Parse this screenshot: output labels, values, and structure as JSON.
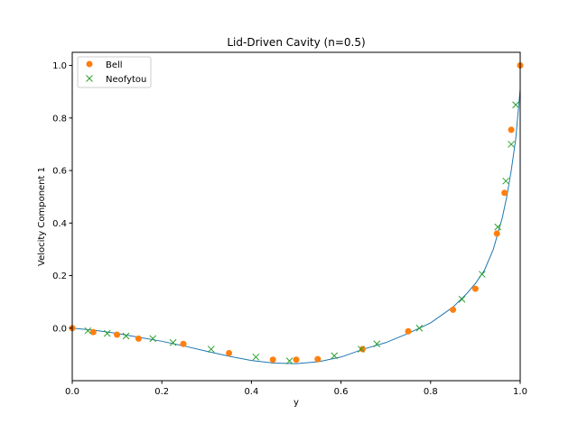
{
  "chart_data": {
    "type": "line",
    "title": "Lid-Driven Cavity (n=0.5)",
    "xlabel": "y",
    "ylabel": "Velocity Component 1",
    "xlim": [
      0,
      1
    ],
    "ylim": [
      -0.2,
      1.05
    ],
    "xticks": [
      "0.0",
      "0.2",
      "0.4",
      "0.6",
      "0.8",
      "1.0"
    ],
    "yticks": [
      "0.0",
      "0.2",
      "0.4",
      "0.6",
      "0.8",
      "1.0"
    ],
    "xtick_values": [
      0,
      0.2,
      0.4,
      0.6,
      0.8,
      1.0
    ],
    "ytick_values": [
      0,
      0.2,
      0.4,
      0.6,
      0.8,
      1.0
    ],
    "grid": false,
    "legend_placement": "top-left",
    "series": [
      {
        "kind": "line",
        "color": "#1f77b4",
        "x": [
          0.0,
          0.05,
          0.1,
          0.15,
          0.2,
          0.25,
          0.3,
          0.35,
          0.4,
          0.45,
          0.5,
          0.55,
          0.6,
          0.65,
          0.7,
          0.75,
          0.8,
          0.85,
          0.88,
          0.9,
          0.92,
          0.94,
          0.96,
          0.97,
          0.98,
          0.99,
          1.0
        ],
        "y": [
          0.0,
          -0.008,
          -0.02,
          -0.035,
          -0.05,
          -0.068,
          -0.088,
          -0.107,
          -0.123,
          -0.133,
          -0.135,
          -0.128,
          -0.11,
          -0.08,
          -0.055,
          -0.02,
          0.02,
          0.08,
          0.13,
          0.17,
          0.22,
          0.3,
          0.42,
          0.5,
          0.6,
          0.72,
          0.91
        ]
      },
      {
        "name": "Bell",
        "kind": "scatter",
        "marker": "circle",
        "color": "#ff7f0e",
        "x": [
          0.0,
          0.047,
          0.1,
          0.148,
          0.248,
          0.35,
          0.448,
          0.5,
          0.548,
          0.648,
          0.75,
          0.85,
          0.9,
          0.948,
          0.965,
          0.98,
          1.0
        ],
        "y": [
          0.0,
          -0.015,
          -0.025,
          -0.04,
          -0.06,
          -0.095,
          -0.12,
          -0.12,
          -0.118,
          -0.08,
          -0.012,
          0.07,
          0.15,
          0.36,
          0.515,
          0.755,
          1.0
        ]
      },
      {
        "name": "Neofytou",
        "kind": "scatter",
        "marker": "x",
        "color": "#2ca02c",
        "x": [
          0.035,
          0.078,
          0.12,
          0.18,
          0.225,
          0.31,
          0.41,
          0.485,
          0.585,
          0.645,
          0.68,
          0.775,
          0.87,
          0.915,
          0.95,
          0.968,
          0.98,
          0.99
        ],
        "y": [
          -0.01,
          -0.02,
          -0.03,
          -0.04,
          -0.055,
          -0.08,
          -0.11,
          -0.125,
          -0.105,
          -0.08,
          -0.06,
          0.0,
          0.11,
          0.205,
          0.385,
          0.56,
          0.7,
          0.85
        ]
      }
    ]
  }
}
